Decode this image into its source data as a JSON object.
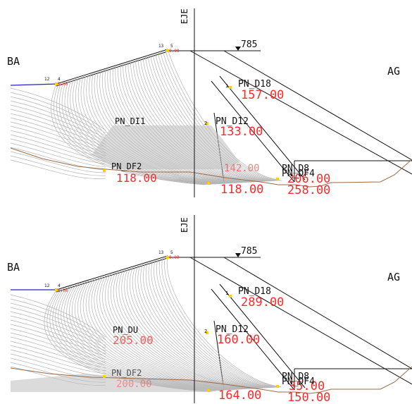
{
  "title": "",
  "colors": {
    "background": "#ffffff",
    "linework": "#111111",
    "fan_lines": "#b4b4b4",
    "dimension_text": "#ff2a2a",
    "terrain": "#9a6b45",
    "water_line": "#2222cc",
    "point_marker": "#ffd000"
  },
  "panels": [
    {
      "axis_label": "EJE",
      "left_label": "BA",
      "right_label": "AG",
      "elevation_label": "785",
      "crest_station": "13",
      "crest_point": "5",
      "crest_value": "0.00",
      "upstream_station": "12",
      "upstream_point": "4",
      "upstream_value": "0.00",
      "bore_labels": [
        {
          "number": "1",
          "name": "PN_D18",
          "value": "157.00"
        },
        {
          "number": "",
          "name": "PN_DI1",
          "value": ""
        },
        {
          "number": "2",
          "name": "PN_D12",
          "value": "133.00"
        },
        {
          "number": "",
          "name": "PN_DF2",
          "value": "118.00"
        },
        {
          "number": "",
          "name": "PN_D8",
          "value": "206.00"
        },
        {
          "number": "",
          "name": "PN_DF4",
          "value": "258.00"
        }
      ],
      "extra_values": [
        "118.00",
        "142.00"
      ]
    },
    {
      "axis_label": "EJE",
      "left_label": "BA",
      "right_label": "AG",
      "elevation_label": "785",
      "crest_station": "13",
      "crest_point": "5",
      "crest_value": "0.00",
      "upstream_station": "12",
      "upstream_point": "4",
      "upstream_value": "0.00",
      "bore_labels": [
        {
          "number": "1",
          "name": "PN_D18",
          "value": "289.00"
        },
        {
          "number": "",
          "name": "PN_DU",
          "value": "205.00"
        },
        {
          "number": "2",
          "name": "PN_D12",
          "value": "160.00"
        },
        {
          "number": "",
          "name": "PN_DF2",
          "value": "200.00"
        },
        {
          "number": "",
          "name": "PN_D8",
          "value": "35.00"
        },
        {
          "number": "",
          "name": "PN_DF4",
          "value": "150.00"
        }
      ],
      "extra_values": [
        "164.00"
      ]
    }
  ]
}
